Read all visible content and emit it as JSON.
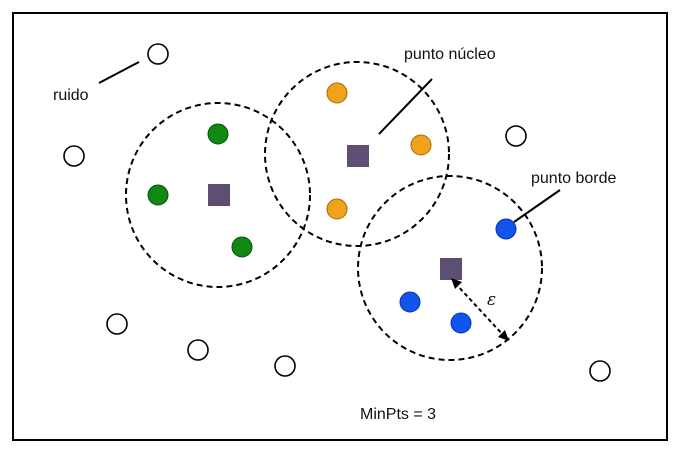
{
  "labels": {
    "noise": "ruido",
    "core_point": "punto núcleo",
    "border_point": "punto borde",
    "epsilon": "ε",
    "minpts": "MinPts = 3"
  },
  "colors": {
    "frame": "#000000",
    "circle_stroke": "#000000",
    "noise_fill": "#ffffff",
    "green_cluster": "#118811",
    "orange_cluster": "#f0a31a",
    "blue_cluster": "#1155ee",
    "core_square": "#5d4f73"
  },
  "clusters": [
    {
      "name": "green",
      "points": 3
    },
    {
      "name": "orange",
      "points": 3
    },
    {
      "name": "blue",
      "points": 3
    }
  ],
  "noise_points": 7,
  "core_points": 3
}
